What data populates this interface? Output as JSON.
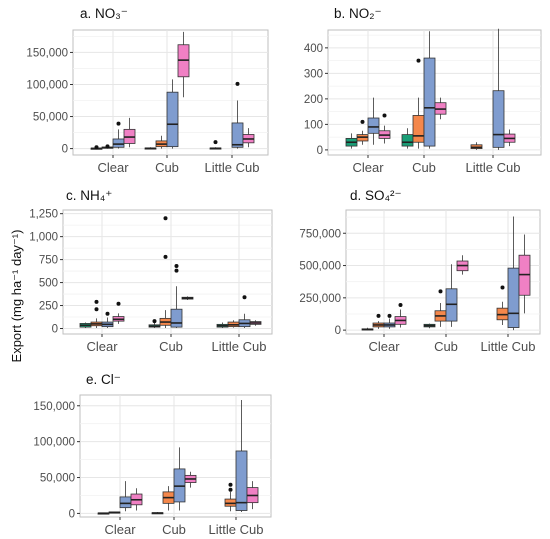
{
  "figure": {
    "ylabel": "Export (mg ha⁻¹ day⁻¹)"
  },
  "colors": {
    "green": "#1a9e77",
    "orange": "#f4874b",
    "blue": "#7f9ccf",
    "pink": "#f080c4",
    "panel_bg": "#ffffff",
    "grid": "#e6e6e6",
    "axis_text": "#4d4d4d"
  },
  "chart_data": [
    {
      "type": "boxplot",
      "panel": "a",
      "title": "a. NO₃⁻",
      "categories": [
        "Clear",
        "Cub",
        "Little Cub"
      ],
      "yticks": [
        "0",
        "50,000",
        "100,000",
        "150,000"
      ],
      "ylim": [
        -10000,
        185000
      ],
      "boxes": [
        {
          "cat": 0,
          "off": -1,
          "color": "green",
          "stats": [
            0,
            0,
            300,
            700,
            1500
          ],
          "out": [
            2000
          ]
        },
        {
          "cat": 0,
          "off": 0,
          "color": "orange",
          "stats": [
            0,
            500,
            1500,
            2500,
            4000
          ],
          "out": [
            3500
          ]
        },
        {
          "cat": 0,
          "off": 1,
          "color": "blue",
          "stats": [
            200,
            2000,
            7000,
            15000,
            30000
          ],
          "out": [
            39000
          ]
        },
        {
          "cat": 0,
          "off": 2,
          "color": "pink",
          "stats": [
            2000,
            8000,
            18000,
            30000,
            48000
          ],
          "out": []
        },
        {
          "cat": 1,
          "off": -1,
          "color": "green",
          "stats": [
            0,
            0,
            500,
            1000,
            2000
          ],
          "out": []
        },
        {
          "cat": 1,
          "off": 0,
          "color": "orange",
          "stats": [
            0,
            3000,
            7000,
            12000,
            20000
          ],
          "out": []
        },
        {
          "cat": 1,
          "off": 1,
          "color": "blue",
          "stats": [
            0,
            3000,
            38000,
            88000,
            108000
          ],
          "out": []
        },
        {
          "cat": 1,
          "off": 2,
          "color": "pink",
          "stats": [
            80000,
            112000,
            138000,
            162000,
            182000
          ],
          "out": []
        },
        {
          "cat": 2,
          "off": -1,
          "color": "green",
          "stats": [
            0,
            200,
            500,
            1000,
            2000
          ],
          "out": [
            10000
          ]
        },
        {
          "cat": 2,
          "off": 1,
          "color": "blue",
          "stats": [
            0,
            2000,
            6000,
            40000,
            75000
          ],
          "out": [
            101000
          ]
        },
        {
          "cat": 2,
          "off": 2,
          "color": "pink",
          "stats": [
            2000,
            9000,
            15000,
            22000,
            32000
          ],
          "out": []
        }
      ]
    },
    {
      "type": "boxplot",
      "panel": "b",
      "title": "b. NO₂⁻",
      "categories": [
        "Clear",
        "Cub",
        "Little Cub"
      ],
      "yticks": [
        "0",
        "100",
        "200",
        "300",
        "400"
      ],
      "ylim": [
        -20,
        470
      ],
      "boxes": [
        {
          "cat": 0,
          "off": -1,
          "color": "green",
          "stats": [
            5,
            15,
            30,
            45,
            65
          ],
          "out": []
        },
        {
          "cat": 0,
          "off": 0,
          "color": "orange",
          "stats": [
            20,
            35,
            50,
            60,
            75
          ],
          "out": [
            110
          ]
        },
        {
          "cat": 0,
          "off": 1,
          "color": "blue",
          "stats": [
            20,
            65,
            90,
            125,
            205
          ],
          "out": []
        },
        {
          "cat": 0,
          "off": 2,
          "color": "pink",
          "stats": [
            25,
            45,
            58,
            75,
            95
          ],
          "out": [
            135
          ]
        },
        {
          "cat": 1,
          "off": -1,
          "color": "green",
          "stats": [
            5,
            15,
            30,
            60,
            85
          ],
          "out": []
        },
        {
          "cat": 1,
          "off": 0,
          "color": "orange",
          "stats": [
            5,
            30,
            55,
            135,
            205
          ],
          "out": [
            350
          ]
        },
        {
          "cat": 1,
          "off": 1,
          "color": "blue",
          "stats": [
            5,
            15,
            165,
            360,
            465
          ],
          "out": []
        },
        {
          "cat": 1,
          "off": 2,
          "color": "pink",
          "stats": [
            120,
            140,
            160,
            185,
            205
          ],
          "out": []
        },
        {
          "cat": 2,
          "off": -1,
          "color": "orange",
          "stats": [
            0,
            5,
            10,
            20,
            30
          ],
          "out": []
        },
        {
          "cat": 2,
          "off": 1,
          "color": "blue",
          "stats": [
            0,
            10,
            60,
            232,
            475
          ],
          "out": []
        },
        {
          "cat": 2,
          "off": 2,
          "color": "pink",
          "stats": [
            15,
            30,
            45,
            62,
            80
          ],
          "out": []
        }
      ]
    },
    {
      "type": "boxplot",
      "panel": "c",
      "title": "c. NH₄⁺",
      "categories": [
        "Clear",
        "Cub",
        "Little Cub"
      ],
      "yticks": [
        "0",
        "250",
        "500",
        "750",
        "1,000",
        "1,250"
      ],
      "ylim": [
        -60,
        1290
      ],
      "boxes": [
        {
          "cat": 0,
          "off": -1,
          "color": "green",
          "stats": [
            5,
            15,
            35,
            55,
            65
          ],
          "out": []
        },
        {
          "cat": 0,
          "off": 0,
          "color": "orange",
          "stats": [
            5,
            30,
            50,
            70,
            110
          ],
          "out": [
            210,
            290
          ]
        },
        {
          "cat": 0,
          "off": 1,
          "color": "blue",
          "stats": [
            5,
            20,
            45,
            70,
            120
          ],
          "out": [
            160
          ]
        },
        {
          "cat": 0,
          "off": 2,
          "color": "pink",
          "stats": [
            50,
            80,
            100,
            130,
            165
          ],
          "out": [
            270
          ]
        },
        {
          "cat": 1,
          "off": -1,
          "color": "green",
          "stats": [
            5,
            15,
            25,
            40,
            60
          ],
          "out": [
            80
          ]
        },
        {
          "cat": 1,
          "off": 0,
          "color": "orange",
          "stats": [
            5,
            35,
            70,
            110,
            200
          ],
          "out": [
            780,
            1200
          ]
        },
        {
          "cat": 1,
          "off": 1,
          "color": "blue",
          "stats": [
            5,
            15,
            60,
            210,
            460
          ],
          "out": [
            630,
            680
          ]
        },
        {
          "cat": 1,
          "off": 2,
          "color": "pink",
          "stats": [
            310,
            320,
            330,
            340,
            350
          ],
          "out": []
        },
        {
          "cat": 2,
          "off": -1,
          "color": "green",
          "stats": [
            5,
            15,
            30,
            45,
            65
          ],
          "out": []
        },
        {
          "cat": 2,
          "off": 0,
          "color": "orange",
          "stats": [
            10,
            20,
            40,
            70,
            90
          ],
          "out": []
        },
        {
          "cat": 2,
          "off": 1,
          "color": "blue",
          "stats": [
            5,
            20,
            55,
            95,
            160
          ],
          "out": [
            340
          ]
        },
        {
          "cat": 2,
          "off": 2,
          "color": "pink",
          "stats": [
            30,
            45,
            60,
            75,
            90
          ],
          "out": []
        }
      ]
    },
    {
      "type": "boxplot",
      "panel": "d",
      "title": "d. SO₄²⁻",
      "categories": [
        "Clear",
        "Cub",
        "Little Cub"
      ],
      "yticks": [
        "0",
        "250,000",
        "500,000",
        "750,000"
      ],
      "ylim": [
        -30000,
        930000
      ],
      "boxes": [
        {
          "cat": 0,
          "off": -1,
          "color": "green",
          "stats": [
            0,
            2000,
            5000,
            10000,
            18000
          ],
          "out": []
        },
        {
          "cat": 0,
          "off": 0,
          "color": "orange",
          "stats": [
            10000,
            25000,
            40000,
            55000,
            70000
          ],
          "out": [
            110000
          ]
        },
        {
          "cat": 0,
          "off": 1,
          "color": "blue",
          "stats": [
            10000,
            25000,
            40000,
            55000,
            90000
          ],
          "out": [
            110000
          ]
        },
        {
          "cat": 0,
          "off": 2,
          "color": "pink",
          "stats": [
            20000,
            45000,
            75000,
            105000,
            160000
          ],
          "out": [
            195000
          ]
        },
        {
          "cat": 1,
          "off": -1,
          "color": "green",
          "stats": [
            15000,
            25000,
            35000,
            45000,
            50000
          ],
          "out": []
        },
        {
          "cat": 1,
          "off": 0,
          "color": "orange",
          "stats": [
            25000,
            70000,
            110000,
            150000,
            210000
          ],
          "out": [
            300000
          ]
        },
        {
          "cat": 1,
          "off": 1,
          "color": "blue",
          "stats": [
            25000,
            70000,
            200000,
            320000,
            510000
          ],
          "out": []
        },
        {
          "cat": 1,
          "off": 2,
          "color": "pink",
          "stats": [
            430000,
            460000,
            500000,
            535000,
            580000
          ],
          "out": []
        },
        {
          "cat": 2,
          "off": 0,
          "color": "orange",
          "stats": [
            40000,
            80000,
            120000,
            170000,
            220000
          ],
          "out": [
            330000
          ]
        },
        {
          "cat": 2,
          "off": 1,
          "color": "blue",
          "stats": [
            0,
            20000,
            130000,
            480000,
            880000
          ],
          "out": []
        },
        {
          "cat": 2,
          "off": 2,
          "color": "pink",
          "stats": [
            130000,
            270000,
            430000,
            580000,
            740000
          ],
          "out": []
        }
      ]
    },
    {
      "type": "boxplot",
      "panel": "e",
      "title": "e. Cl⁻",
      "categories": [
        "Clear",
        "Cub",
        "Little Cub"
      ],
      "yticks": [
        "0",
        "50,000",
        "100,000",
        "150,000"
      ],
      "ylim": [
        -5000,
        165000
      ],
      "boxes": [
        {
          "cat": 0,
          "off": -1,
          "color": "green",
          "stats": [
            0,
            100,
            300,
            600,
            1000
          ],
          "out": []
        },
        {
          "cat": 0,
          "off": 0,
          "color": "orange",
          "stats": [
            500,
            1000,
            1500,
            2000,
            2500
          ],
          "out": []
        },
        {
          "cat": 0,
          "off": 1,
          "color": "blue",
          "stats": [
            3000,
            8000,
            14000,
            23000,
            45000
          ],
          "out": []
        },
        {
          "cat": 0,
          "off": 2,
          "color": "pink",
          "stats": [
            4000,
            12000,
            19000,
            27000,
            35000
          ],
          "out": []
        },
        {
          "cat": 1,
          "off": -1,
          "color": "green",
          "stats": [
            0,
            200,
            500,
            1000,
            2000
          ],
          "out": []
        },
        {
          "cat": 1,
          "off": 0,
          "color": "orange",
          "stats": [
            4000,
            14000,
            22000,
            30000,
            38000
          ],
          "out": []
        },
        {
          "cat": 1,
          "off": 1,
          "color": "blue",
          "stats": [
            4000,
            16000,
            38000,
            62000,
            92000
          ],
          "out": []
        },
        {
          "cat": 1,
          "off": 2,
          "color": "pink",
          "stats": [
            36000,
            43000,
            48000,
            53000,
            58000
          ],
          "out": []
        },
        {
          "cat": 2,
          "off": 0,
          "color": "orange",
          "stats": [
            3000,
            10000,
            14000,
            20000,
            30000
          ],
          "out": [
            33000,
            40000
          ]
        },
        {
          "cat": 2,
          "off": 1,
          "color": "blue",
          "stats": [
            2000,
            4000,
            15000,
            87000,
            158000
          ],
          "out": []
        },
        {
          "cat": 2,
          "off": 2,
          "color": "pink",
          "stats": [
            6000,
            15000,
            25000,
            36000,
            45000
          ],
          "out": []
        }
      ]
    }
  ]
}
